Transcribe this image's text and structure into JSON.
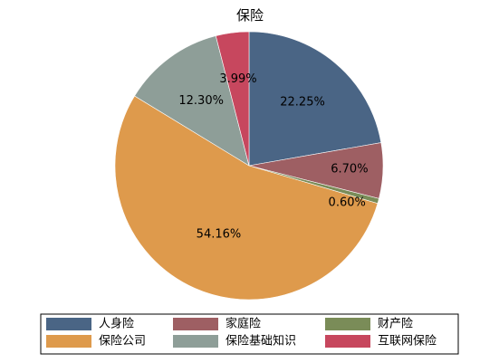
{
  "chart_data": {
    "type": "pie",
    "title": "保险",
    "slices": [
      {
        "label": "人身险",
        "value": 22.25,
        "value_label": "22.25%",
        "color": "#4A6585"
      },
      {
        "label": "家庭险",
        "value": 6.7,
        "value_label": "6.70%",
        "color": "#9E5F63"
      },
      {
        "label": "财产险",
        "value": 0.6,
        "value_label": "0.60%",
        "color": "#7A8C58"
      },
      {
        "label": "保险公司",
        "value": 54.16,
        "value_label": "54.16%",
        "color": "#DE9A4C"
      },
      {
        "label": "保险基础知识",
        "value": 12.3,
        "value_label": "12.30%",
        "color": "#8E9E98"
      },
      {
        "label": "互联网保险",
        "value": 3.99,
        "value_label": "3.99%",
        "color": "#C7475E"
      }
    ],
    "legend_position": "bottom",
    "start_angle": "12 o'clock",
    "direction": "clockwise"
  }
}
